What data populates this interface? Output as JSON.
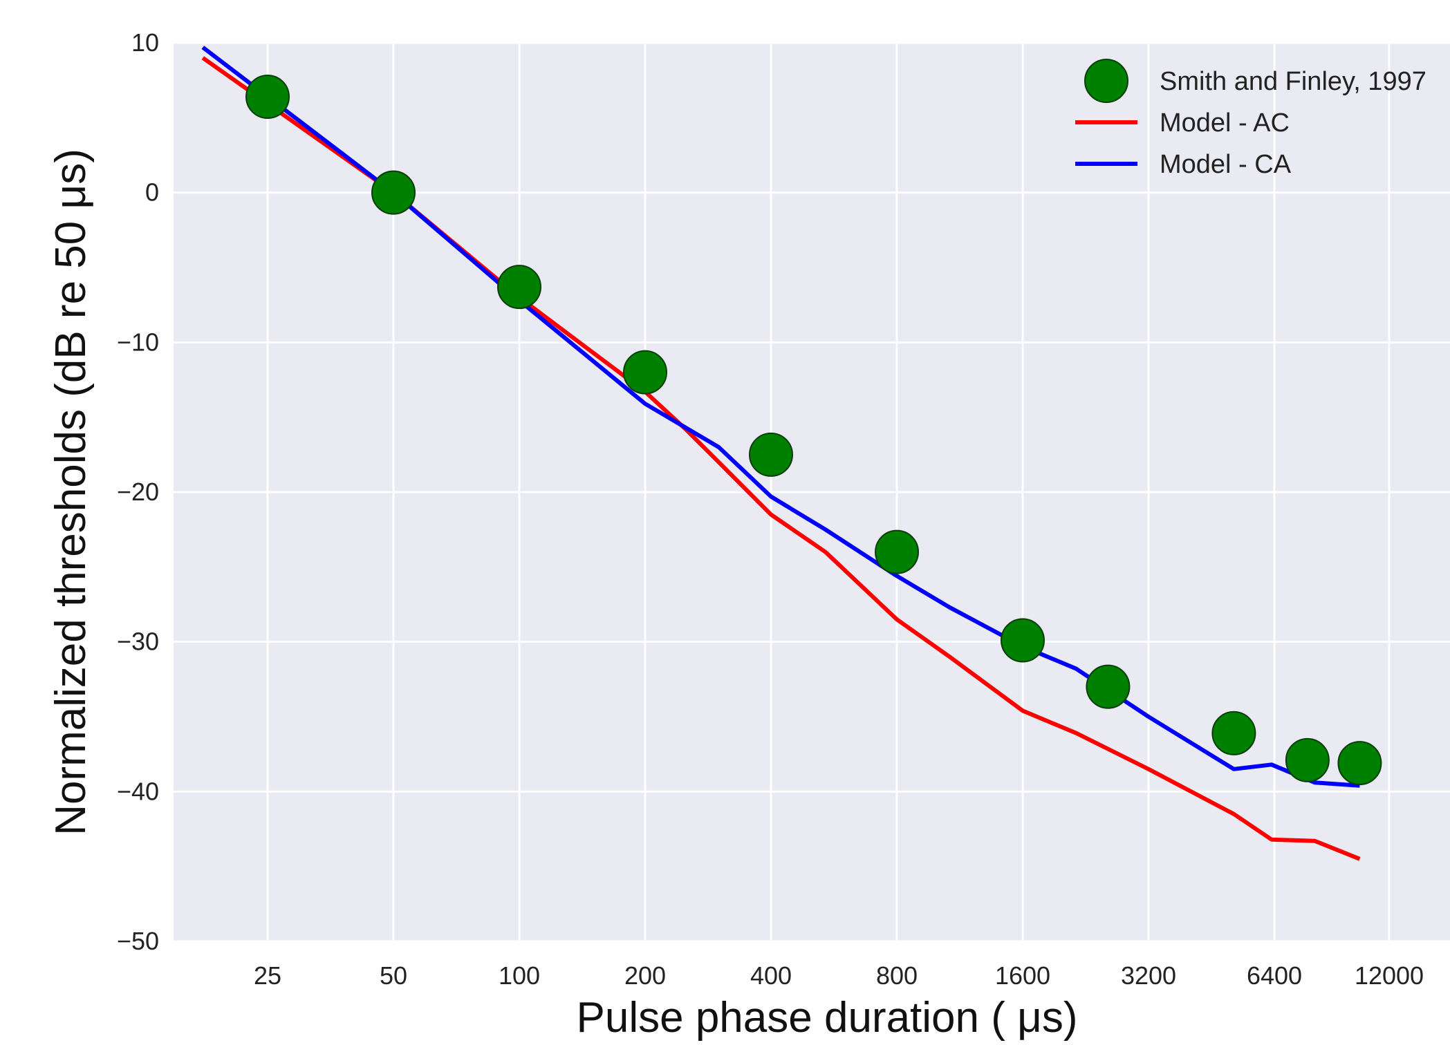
{
  "chart_data": {
    "type": "line",
    "title": "",
    "xlabel": "Pulse phase duration ( μs)",
    "ylabel": "Normalized thresholds (dB re 50 μs)",
    "x_scale": "log2",
    "x_ticks": [
      25,
      50,
      100,
      200,
      400,
      800,
      1600,
      3200,
      6400,
      12000
    ],
    "x_tick_labels": [
      "25",
      "50",
      "100",
      "200",
      "400",
      "800",
      "1600",
      "3200",
      "6400",
      "12000"
    ],
    "xlim": [
      12.5,
      15000
    ],
    "ylim": [
      -50,
      10
    ],
    "y_ticks": [
      10,
      0,
      -10,
      -20,
      -30,
      -40,
      -50
    ],
    "y_tick_labels": [
      "10",
      "0",
      "−10",
      "−20",
      "−30",
      "−40",
      "−50"
    ],
    "grid": true,
    "legend_position": "top-right",
    "colors": {
      "background": "#eaeaf2",
      "grid": "#ffffff",
      "scatter": "#008000",
      "ac": "#ff0000",
      "ca": "#0000ff"
    },
    "series": [
      {
        "name": "Smith and Finley, 1997",
        "kind": "scatter",
        "x": [
          25,
          50,
          100,
          200,
          400,
          800,
          1600,
          2560,
          5120,
          7680,
          10240
        ],
        "y": [
          6.4,
          0,
          -6.3,
          -12.0,
          -17.5,
          -24.0,
          -29.9,
          -33.0,
          -36.1,
          -37.9,
          -38.1
        ]
      },
      {
        "name": "Model - AC",
        "kind": "line",
        "x": [
          17.5,
          50,
          100,
          200,
          250,
          300,
          400,
          540,
          800,
          1070,
          1600,
          2150,
          3200,
          5120,
          6300,
          8000,
          10240
        ],
        "y": [
          9.0,
          0,
          -7.0,
          -13.3,
          -15.8,
          -18.0,
          -21.5,
          -24.0,
          -28.5,
          -31.0,
          -34.6,
          -36.1,
          -38.5,
          -41.5,
          -43.2,
          -43.3,
          -44.5
        ]
      },
      {
        "name": "Model - CA",
        "kind": "line",
        "x": [
          17.5,
          50,
          100,
          200,
          300,
          400,
          540,
          800,
          1070,
          1600,
          2150,
          3200,
          5120,
          6300,
          8000,
          10240
        ],
        "y": [
          9.7,
          0,
          -7.2,
          -14.1,
          -17.0,
          -20.3,
          -22.5,
          -25.6,
          -27.7,
          -30.3,
          -31.8,
          -35.0,
          -38.5,
          -38.2,
          -39.4,
          -39.6
        ]
      }
    ]
  }
}
